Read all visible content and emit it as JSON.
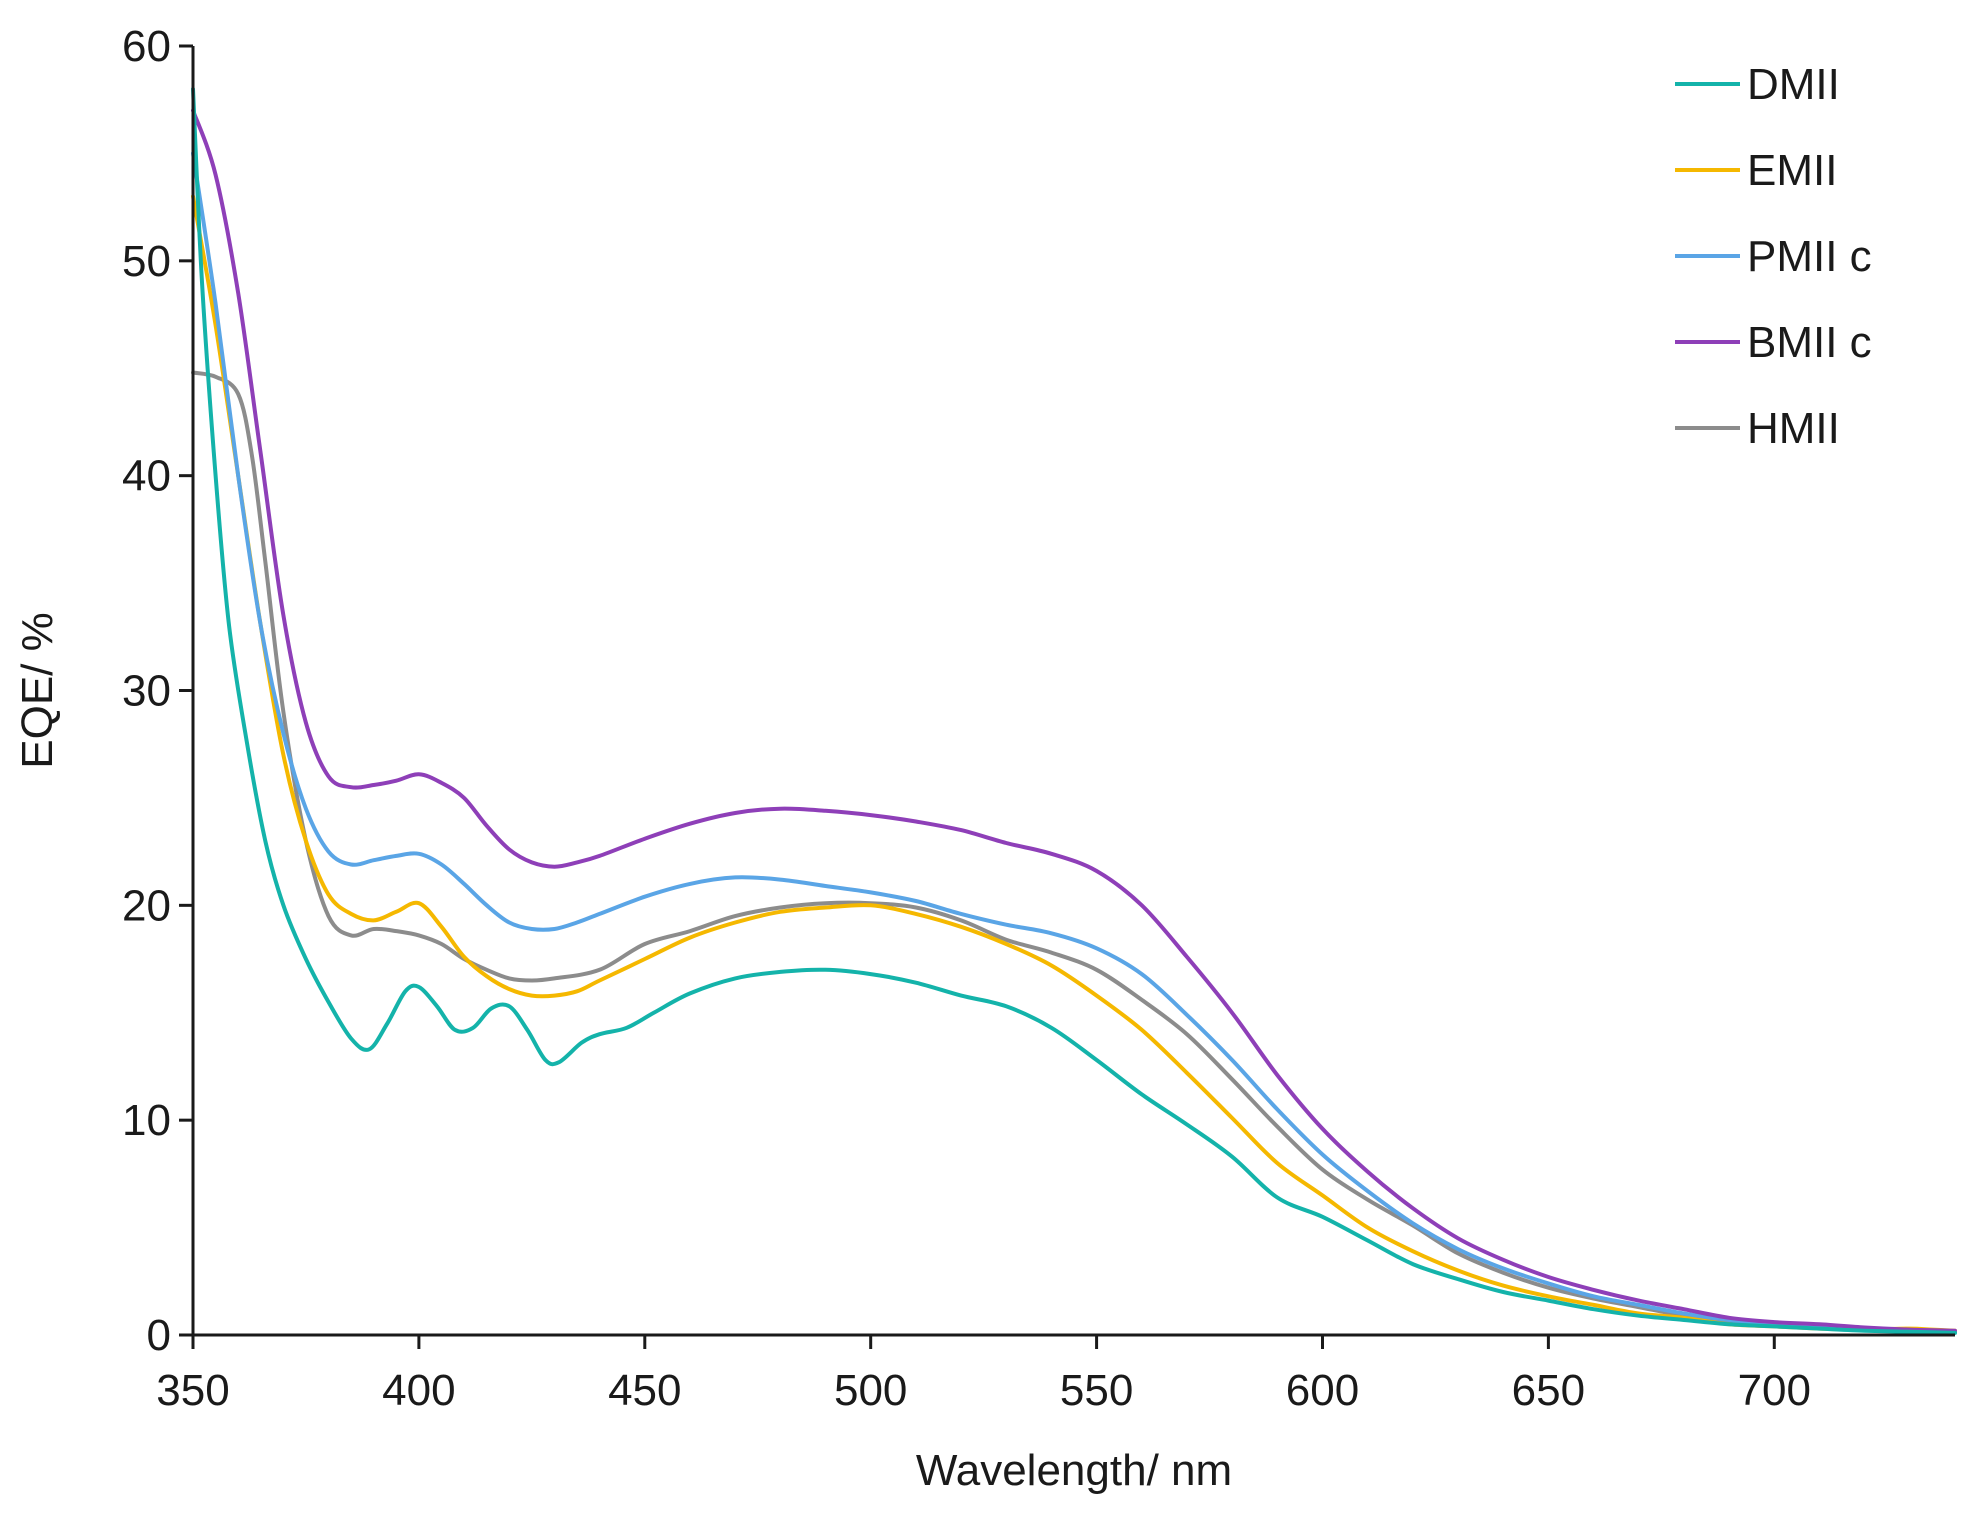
{
  "chart_data": {
    "type": "line",
    "title": "",
    "xlabel": "Wavelength/ nm",
    "ylabel": "EQE/ %",
    "xlim": [
      350,
      740
    ],
    "ylim": [
      0,
      60
    ],
    "xticks": [
      350,
      400,
      450,
      500,
      550,
      600,
      650,
      700
    ],
    "yticks": [
      0,
      10,
      20,
      30,
      40,
      50,
      60
    ],
    "grid": false,
    "legend_position": "top-right",
    "series": [
      {
        "name": "DMII",
        "color": "#14b3aa",
        "points": [
          [
            350,
            58
          ],
          [
            352,
            49
          ],
          [
            355,
            40
          ],
          [
            358,
            33
          ],
          [
            362,
            27.5
          ],
          [
            366,
            23
          ],
          [
            370,
            20
          ],
          [
            375,
            17.5
          ],
          [
            380,
            15.5
          ],
          [
            385,
            13.8
          ],
          [
            389,
            13.3
          ],
          [
            393,
            14.5
          ],
          [
            397,
            16.0
          ],
          [
            400,
            16.2
          ],
          [
            404,
            15.3
          ],
          [
            408,
            14.2
          ],
          [
            412,
            14.3
          ],
          [
            416,
            15.2
          ],
          [
            420,
            15.3
          ],
          [
            424,
            14.2
          ],
          [
            428,
            12.8
          ],
          [
            431,
            12.7
          ],
          [
            436,
            13.6
          ],
          [
            440,
            14.0
          ],
          [
            446,
            14.3
          ],
          [
            452,
            15.0
          ],
          [
            460,
            15.9
          ],
          [
            470,
            16.6
          ],
          [
            480,
            16.9
          ],
          [
            490,
            17.0
          ],
          [
            500,
            16.8
          ],
          [
            510,
            16.4
          ],
          [
            520,
            15.8
          ],
          [
            530,
            15.3
          ],
          [
            540,
            14.3
          ],
          [
            550,
            12.8
          ],
          [
            560,
            11.2
          ],
          [
            570,
            9.8
          ],
          [
            580,
            8.3
          ],
          [
            590,
            6.4
          ],
          [
            600,
            5.5
          ],
          [
            610,
            4.4
          ],
          [
            620,
            3.3
          ],
          [
            630,
            2.6
          ],
          [
            640,
            2.0
          ],
          [
            650,
            1.6
          ],
          [
            660,
            1.2
          ],
          [
            670,
            0.9
          ],
          [
            680,
            0.7
          ],
          [
            690,
            0.5
          ],
          [
            700,
            0.4
          ],
          [
            710,
            0.3
          ],
          [
            720,
            0.2
          ],
          [
            730,
            0.15
          ],
          [
            740,
            0.1
          ]
        ]
      },
      {
        "name": "EMII",
        "color": "#f5b800",
        "points": [
          [
            350,
            53
          ],
          [
            355,
            47
          ],
          [
            360,
            40
          ],
          [
            365,
            33
          ],
          [
            370,
            27
          ],
          [
            375,
            23
          ],
          [
            380,
            20.5
          ],
          [
            385,
            19.6
          ],
          [
            390,
            19.3
          ],
          [
            395,
            19.7
          ],
          [
            400,
            20.1
          ],
          [
            405,
            19.0
          ],
          [
            410,
            17.6
          ],
          [
            415,
            16.7
          ],
          [
            420,
            16.1
          ],
          [
            425,
            15.8
          ],
          [
            430,
            15.8
          ],
          [
            435,
            16.0
          ],
          [
            440,
            16.5
          ],
          [
            450,
            17.5
          ],
          [
            460,
            18.5
          ],
          [
            470,
            19.2
          ],
          [
            480,
            19.7
          ],
          [
            490,
            19.9
          ],
          [
            500,
            20.0
          ],
          [
            510,
            19.6
          ],
          [
            520,
            19.0
          ],
          [
            530,
            18.2
          ],
          [
            540,
            17.2
          ],
          [
            550,
            15.8
          ],
          [
            560,
            14.2
          ],
          [
            570,
            12.2
          ],
          [
            580,
            10.1
          ],
          [
            590,
            8.0
          ],
          [
            600,
            6.5
          ],
          [
            610,
            5.0
          ],
          [
            620,
            3.9
          ],
          [
            630,
            3.0
          ],
          [
            640,
            2.3
          ],
          [
            650,
            1.8
          ],
          [
            660,
            1.4
          ],
          [
            670,
            1.0
          ],
          [
            680,
            0.8
          ],
          [
            690,
            0.5
          ],
          [
            700,
            0.4
          ],
          [
            710,
            0.3
          ],
          [
            720,
            0.25
          ],
          [
            730,
            0.3
          ],
          [
            735,
            0.25
          ],
          [
            740,
            0.2
          ]
        ]
      },
      {
        "name": "PMII c",
        "color": "#5aa5e6",
        "points": [
          [
            350,
            55
          ],
          [
            355,
            48
          ],
          [
            360,
            40
          ],
          [
            365,
            33
          ],
          [
            370,
            28
          ],
          [
            375,
            24.5
          ],
          [
            380,
            22.5
          ],
          [
            385,
            21.9
          ],
          [
            390,
            22.1
          ],
          [
            395,
            22.3
          ],
          [
            400,
            22.4
          ],
          [
            405,
            21.9
          ],
          [
            410,
            21.0
          ],
          [
            415,
            20.0
          ],
          [
            420,
            19.2
          ],
          [
            425,
            18.9
          ],
          [
            430,
            18.9
          ],
          [
            435,
            19.2
          ],
          [
            440,
            19.6
          ],
          [
            450,
            20.4
          ],
          [
            460,
            21.0
          ],
          [
            470,
            21.3
          ],
          [
            480,
            21.2
          ],
          [
            490,
            20.9
          ],
          [
            500,
            20.6
          ],
          [
            510,
            20.2
          ],
          [
            520,
            19.6
          ],
          [
            530,
            19.1
          ],
          [
            540,
            18.7
          ],
          [
            550,
            18.0
          ],
          [
            560,
            16.8
          ],
          [
            570,
            14.9
          ],
          [
            580,
            12.8
          ],
          [
            590,
            10.5
          ],
          [
            600,
            8.4
          ],
          [
            610,
            6.7
          ],
          [
            620,
            5.2
          ],
          [
            630,
            4.0
          ],
          [
            640,
            3.1
          ],
          [
            650,
            2.4
          ],
          [
            660,
            1.8
          ],
          [
            670,
            1.4
          ],
          [
            680,
            1.0
          ],
          [
            690,
            0.7
          ],
          [
            700,
            0.5
          ],
          [
            710,
            0.4
          ],
          [
            720,
            0.3
          ],
          [
            730,
            0.2
          ],
          [
            740,
            0.15
          ]
        ]
      },
      {
        "name": "BMII c",
        "color": "#8e3fb8",
        "points": [
          [
            350,
            57
          ],
          [
            355,
            54
          ],
          [
            360,
            48.5
          ],
          [
            365,
            41
          ],
          [
            370,
            33.5
          ],
          [
            375,
            28.5
          ],
          [
            380,
            26.0
          ],
          [
            385,
            25.5
          ],
          [
            390,
            25.6
          ],
          [
            395,
            25.8
          ],
          [
            400,
            26.1
          ],
          [
            405,
            25.7
          ],
          [
            410,
            25.0
          ],
          [
            415,
            23.7
          ],
          [
            420,
            22.6
          ],
          [
            425,
            22.0
          ],
          [
            430,
            21.8
          ],
          [
            435,
            22.0
          ],
          [
            440,
            22.3
          ],
          [
            450,
            23.1
          ],
          [
            460,
            23.8
          ],
          [
            470,
            24.3
          ],
          [
            480,
            24.5
          ],
          [
            490,
            24.4
          ],
          [
            500,
            24.2
          ],
          [
            510,
            23.9
          ],
          [
            520,
            23.5
          ],
          [
            530,
            22.9
          ],
          [
            540,
            22.4
          ],
          [
            550,
            21.6
          ],
          [
            560,
            20.0
          ],
          [
            570,
            17.6
          ],
          [
            580,
            15.0
          ],
          [
            590,
            12.1
          ],
          [
            600,
            9.6
          ],
          [
            610,
            7.6
          ],
          [
            620,
            5.9
          ],
          [
            630,
            4.5
          ],
          [
            640,
            3.5
          ],
          [
            650,
            2.7
          ],
          [
            660,
            2.1
          ],
          [
            670,
            1.6
          ],
          [
            680,
            1.2
          ],
          [
            690,
            0.8
          ],
          [
            700,
            0.6
          ],
          [
            710,
            0.5
          ],
          [
            720,
            0.35
          ],
          [
            730,
            0.25
          ],
          [
            740,
            0.2
          ]
        ]
      },
      {
        "name": "HMII",
        "color": "#8c8c8c",
        "points": [
          [
            350,
            44.8
          ],
          [
            355,
            44.6
          ],
          [
            360,
            43.8
          ],
          [
            363,
            41
          ],
          [
            366,
            36
          ],
          [
            370,
            29
          ],
          [
            375,
            23
          ],
          [
            380,
            19.5
          ],
          [
            385,
            18.6
          ],
          [
            390,
            18.9
          ],
          [
            395,
            18.8
          ],
          [
            400,
            18.6
          ],
          [
            405,
            18.2
          ],
          [
            410,
            17.5
          ],
          [
            415,
            17.0
          ],
          [
            420,
            16.6
          ],
          [
            425,
            16.5
          ],
          [
            430,
            16.6
          ],
          [
            440,
            17.0
          ],
          [
            450,
            18.2
          ],
          [
            460,
            18.8
          ],
          [
            470,
            19.5
          ],
          [
            480,
            19.9
          ],
          [
            490,
            20.1
          ],
          [
            500,
            20.1
          ],
          [
            510,
            19.9
          ],
          [
            520,
            19.3
          ],
          [
            530,
            18.4
          ],
          [
            540,
            17.8
          ],
          [
            550,
            17.0
          ],
          [
            560,
            15.6
          ],
          [
            570,
            14.0
          ],
          [
            580,
            11.9
          ],
          [
            590,
            9.7
          ],
          [
            600,
            7.7
          ],
          [
            610,
            6.3
          ],
          [
            620,
            5.1
          ],
          [
            630,
            3.8
          ],
          [
            640,
            2.9
          ],
          [
            650,
            2.2
          ],
          [
            660,
            1.7
          ],
          [
            670,
            1.3
          ],
          [
            680,
            0.9
          ],
          [
            690,
            0.6
          ],
          [
            700,
            0.5
          ],
          [
            710,
            0.35
          ],
          [
            720,
            0.25
          ],
          [
            730,
            0.2
          ],
          [
            740,
            0.15
          ]
        ]
      }
    ]
  }
}
